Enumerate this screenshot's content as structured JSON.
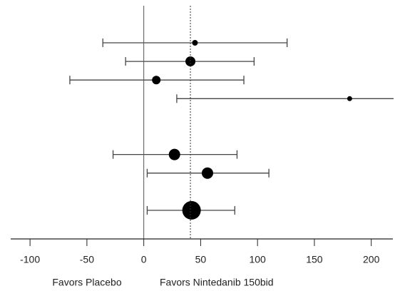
{
  "chart_data": {
    "type": "forest",
    "categories": [
      null,
      null,
      null,
      null,
      null,
      null,
      null,
      null,
      null,
      null
    ],
    "values": [
      45,
      41,
      11,
      181,
      null,
      null,
      27,
      56,
      null,
      42
    ],
    "lower": [
      -36,
      -16,
      -65,
      29,
      null,
      null,
      -27,
      3,
      null,
      3
    ],
    "upper": [
      126,
      97,
      88,
      225,
      null,
      null,
      82,
      110,
      null,
      80
    ],
    "sizes": [
      4,
      7,
      6,
      3.5,
      null,
      null,
      8,
      8,
      null,
      13
    ],
    "color": "#000000",
    "xlim": [
      -117,
      219
    ],
    "xticks": [
      -100,
      -50,
      0,
      50,
      100,
      150,
      200
    ],
    "null_line": 0,
    "reference_line": 41,
    "annotations": [
      "Favors Placebo",
      "Favors Nintedanib 150bid"
    ]
  }
}
